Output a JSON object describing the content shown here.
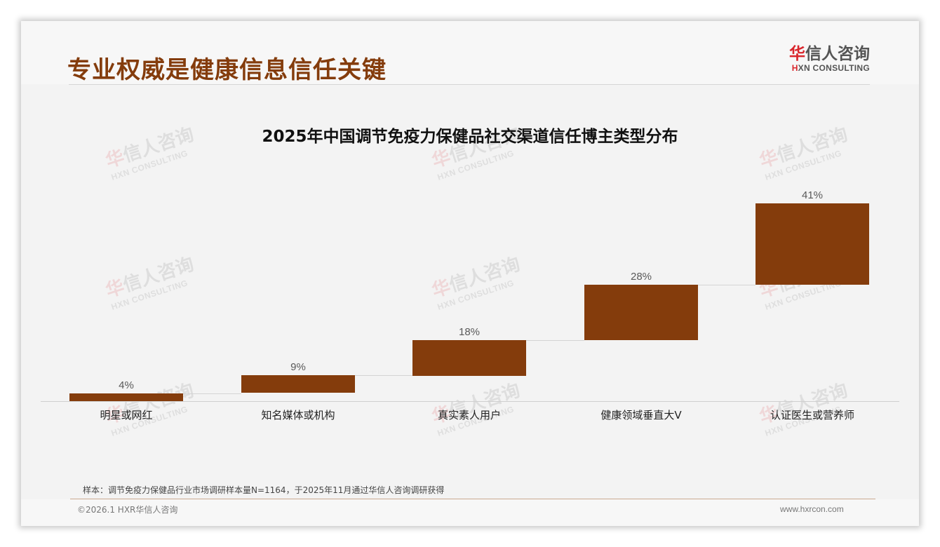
{
  "header": {
    "title": "专业权威是健康信息信任关键",
    "logo": {
      "cn_first": "华",
      "cn_rest": "信人咨询",
      "en_first": "H",
      "en_rest": "XN CONSULTING"
    }
  },
  "watermark": {
    "cn_first": "华",
    "cn_rest": "信人咨询",
    "en": "HXN CONSULTING"
  },
  "chart_data": {
    "type": "bar",
    "subtype": "waterfall",
    "title": "2025年中国调节免疫力保健品社交渠道信任博主类型分布",
    "categories": [
      "明星或网红",
      "知名媒体或机构",
      "真实素人用户",
      "健康领域垂直大V",
      "认证医生或营养师"
    ],
    "values": [
      4,
      9,
      18,
      28,
      41
    ],
    "value_labels": [
      "4%",
      "9%",
      "18%",
      "28%",
      "41%"
    ],
    "unit": "%",
    "xlabel": "",
    "ylabel": "",
    "grid": false,
    "legend": "none",
    "color": "#843c0c"
  },
  "footer": {
    "note": "样本：调节免疫力保健品行业市场调研样本量N=1164，于2025年11月通过华信人咨询调研获得",
    "copyright": "©2026.1 HXR华信人咨询",
    "website": "www.hxrcon.com"
  }
}
